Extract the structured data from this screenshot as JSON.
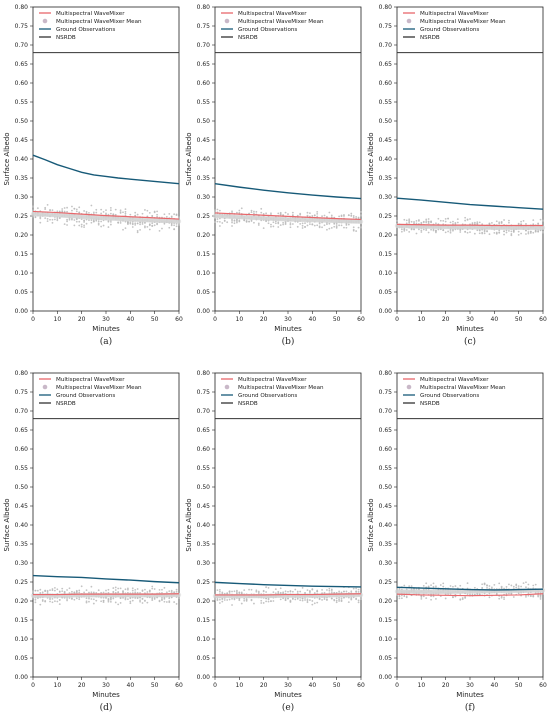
{
  "chart_data": [
    {
      "type": "line",
      "caption": "(a)",
      "xlabel": "Minutes",
      "ylabel": "Surface Albedo",
      "xlim": [
        0,
        60
      ],
      "ylim": [
        0,
        0.8
      ],
      "xticks": [
        0,
        10,
        20,
        30,
        40,
        50,
        60
      ],
      "yticks": [
        0.0,
        0.05,
        0.1,
        0.15,
        0.2,
        0.25,
        0.3,
        0.35,
        0.4,
        0.45,
        0.5,
        0.55,
        0.6,
        0.65,
        0.7,
        0.75,
        0.8
      ],
      "legend": [
        "Multispectral WaveMixer",
        "Multispectral WaveMixer Mean",
        "Ground Observations",
        "NSRDB"
      ],
      "legend_position": "top-right",
      "series": [
        {
          "name": "Multispectral WaveMixer",
          "color": "#e8676b",
          "x": [
            0,
            10,
            20,
            30,
            40,
            50,
            60
          ],
          "values": [
            0.262,
            0.259,
            0.255,
            0.251,
            0.248,
            0.245,
            0.242
          ]
        },
        {
          "name": "Multispectral WaveMixer Mean",
          "color": "#c9c9c9",
          "x": [
            0,
            10,
            20,
            30,
            40,
            50,
            60
          ],
          "values": [
            0.255,
            0.252,
            0.248,
            0.244,
            0.241,
            0.238,
            0.236
          ],
          "spread": 0.035
        },
        {
          "name": "Ground Observations",
          "color": "#175a78",
          "x": [
            0,
            5,
            10,
            15,
            20,
            25,
            30,
            35,
            40,
            45,
            50,
            55,
            60
          ],
          "values": [
            0.41,
            0.398,
            0.385,
            0.375,
            0.365,
            0.358,
            0.354,
            0.35,
            0.347,
            0.344,
            0.341,
            0.338,
            0.335
          ]
        },
        {
          "name": "NSRDB",
          "color": "#333333",
          "x": [
            0,
            60
          ],
          "values": [
            0.68,
            0.68
          ]
        }
      ]
    },
    {
      "type": "line",
      "caption": "(b)",
      "xlabel": "Minutes",
      "ylabel": "Surface Albedo",
      "xlim": [
        0,
        60
      ],
      "ylim": [
        0,
        0.8
      ],
      "xticks": [
        0,
        10,
        20,
        30,
        40,
        50,
        60
      ],
      "yticks": [
        0.0,
        0.05,
        0.1,
        0.15,
        0.2,
        0.25,
        0.3,
        0.35,
        0.4,
        0.45,
        0.5,
        0.55,
        0.6,
        0.65,
        0.7,
        0.75,
        0.8
      ],
      "legend": [
        "Multispectral WaveMixer",
        "Multispectral WaveMixer Mean",
        "Ground Observations",
        "NSRDB"
      ],
      "legend_position": "top-right",
      "series": [
        {
          "name": "Multispectral WaveMixer",
          "color": "#e8676b",
          "x": [
            0,
            10,
            20,
            30,
            40,
            50,
            60
          ],
          "values": [
            0.258,
            0.255,
            0.252,
            0.249,
            0.246,
            0.243,
            0.241
          ]
        },
        {
          "name": "Multispectral WaveMixer Mean",
          "color": "#c9c9c9",
          "x": [
            0,
            10,
            20,
            30,
            40,
            50,
            60
          ],
          "values": [
            0.25,
            0.247,
            0.244,
            0.241,
            0.239,
            0.237,
            0.235
          ],
          "spread": 0.03
        },
        {
          "name": "Ground Observations",
          "color": "#175a78",
          "x": [
            0,
            10,
            20,
            30,
            40,
            50,
            60
          ],
          "values": [
            0.335,
            0.326,
            0.318,
            0.311,
            0.305,
            0.3,
            0.296
          ]
        },
        {
          "name": "NSRDB",
          "color": "#333333",
          "x": [
            0,
            60
          ],
          "values": [
            0.68,
            0.68
          ]
        }
      ]
    },
    {
      "type": "line",
      "caption": "(c)",
      "xlabel": "Minutes",
      "ylabel": "Surface Albedo",
      "xlim": [
        0,
        60
      ],
      "ylim": [
        0,
        0.8
      ],
      "xticks": [
        0,
        10,
        20,
        30,
        40,
        50,
        60
      ],
      "yticks": [
        0.0,
        0.05,
        0.1,
        0.15,
        0.2,
        0.25,
        0.3,
        0.35,
        0.4,
        0.45,
        0.5,
        0.55,
        0.6,
        0.65,
        0.7,
        0.75,
        0.8
      ],
      "legend": [
        "Multispectral WaveMixer",
        "Multispectral WaveMixer Mean",
        "Ground Observations",
        "NSRDB"
      ],
      "legend_position": "top-right",
      "series": [
        {
          "name": "Multispectral WaveMixer",
          "color": "#e8676b",
          "x": [
            0,
            10,
            20,
            30,
            40,
            50,
            60
          ],
          "values": [
            0.228,
            0.227,
            0.226,
            0.226,
            0.225,
            0.225,
            0.225
          ]
        },
        {
          "name": "Multispectral WaveMixer Mean",
          "color": "#c9c9c9",
          "x": [
            0,
            10,
            20,
            30,
            40,
            50,
            60
          ],
          "values": [
            0.224,
            0.222,
            0.221,
            0.22,
            0.219,
            0.219,
            0.219
          ],
          "spread": 0.03
        },
        {
          "name": "Ground Observations",
          "color": "#175a78",
          "x": [
            0,
            10,
            20,
            30,
            40,
            50,
            60
          ],
          "values": [
            0.297,
            0.292,
            0.286,
            0.28,
            0.276,
            0.272,
            0.268
          ]
        },
        {
          "name": "NSRDB",
          "color": "#333333",
          "x": [
            0,
            60
          ],
          "values": [
            0.68,
            0.68
          ]
        }
      ]
    },
    {
      "type": "line",
      "caption": "(d)",
      "xlabel": "Minutes",
      "ylabel": "Surface Albedo",
      "xlim": [
        0,
        60
      ],
      "ylim": [
        0,
        0.8
      ],
      "xticks": [
        0,
        10,
        20,
        30,
        40,
        50,
        60
      ],
      "yticks": [
        0.0,
        0.05,
        0.1,
        0.15,
        0.2,
        0.25,
        0.3,
        0.35,
        0.4,
        0.45,
        0.5,
        0.55,
        0.6,
        0.65,
        0.7,
        0.75,
        0.8
      ],
      "legend": [
        "Multispectral WaveMixer",
        "Multispectral WaveMixer Mean",
        "Ground Observations",
        "NSRDB"
      ],
      "legend_position": "top-right",
      "series": [
        {
          "name": "Multispectral WaveMixer",
          "color": "#e8676b",
          "x": [
            0,
            10,
            20,
            30,
            40,
            50,
            60
          ],
          "values": [
            0.217,
            0.217,
            0.218,
            0.218,
            0.218,
            0.218,
            0.219
          ]
        },
        {
          "name": "Multispectral WaveMixer Mean",
          "color": "#c9c9c9",
          "x": [
            0,
            10,
            20,
            30,
            40,
            50,
            60
          ],
          "values": [
            0.214,
            0.214,
            0.215,
            0.215,
            0.215,
            0.215,
            0.216
          ],
          "spread": 0.028
        },
        {
          "name": "Ground Observations",
          "color": "#175a78",
          "x": [
            0,
            10,
            20,
            30,
            40,
            50,
            60
          ],
          "values": [
            0.267,
            0.264,
            0.262,
            0.258,
            0.255,
            0.251,
            0.248
          ]
        },
        {
          "name": "NSRDB",
          "color": "#333333",
          "x": [
            0,
            60
          ],
          "values": [
            0.68,
            0.68
          ]
        }
      ]
    },
    {
      "type": "line",
      "caption": "(e)",
      "xlabel": "Minutes",
      "ylabel": "Surface Albedo",
      "xlim": [
        0,
        60
      ],
      "ylim": [
        0,
        0.8
      ],
      "xticks": [
        0,
        10,
        20,
        30,
        40,
        50,
        60
      ],
      "yticks": [
        0.0,
        0.05,
        0.1,
        0.15,
        0.2,
        0.25,
        0.3,
        0.35,
        0.4,
        0.45,
        0.5,
        0.55,
        0.6,
        0.65,
        0.7,
        0.75,
        0.8
      ],
      "legend": [
        "Multispectral WaveMixer",
        "Multispectral WaveMixer Mean",
        "Ground Observations",
        "NSRDB"
      ],
      "legend_position": "top-right",
      "series": [
        {
          "name": "Multispectral WaveMixer",
          "color": "#e8676b",
          "x": [
            0,
            10,
            20,
            30,
            40,
            50,
            60
          ],
          "values": [
            0.216,
            0.216,
            0.216,
            0.217,
            0.217,
            0.218,
            0.219
          ]
        },
        {
          "name": "Multispectral WaveMixer Mean",
          "color": "#c9c9c9",
          "x": [
            0,
            10,
            20,
            30,
            40,
            50,
            60
          ],
          "values": [
            0.213,
            0.213,
            0.213,
            0.214,
            0.214,
            0.215,
            0.216
          ],
          "spread": 0.028
        },
        {
          "name": "Ground Observations",
          "color": "#175a78",
          "x": [
            0,
            10,
            20,
            30,
            40,
            50,
            60
          ],
          "values": [
            0.249,
            0.246,
            0.243,
            0.241,
            0.239,
            0.238,
            0.237
          ]
        },
        {
          "name": "NSRDB",
          "color": "#333333",
          "x": [
            0,
            60
          ],
          "values": [
            0.68,
            0.68
          ]
        }
      ]
    },
    {
      "type": "line",
      "caption": "(f)",
      "xlabel": "Minutes",
      "ylabel": "Surface Albedo",
      "xlim": [
        0,
        60
      ],
      "ylim": [
        0,
        0.8
      ],
      "xticks": [
        0,
        10,
        20,
        30,
        40,
        50,
        60
      ],
      "yticks": [
        0.0,
        0.05,
        0.1,
        0.15,
        0.2,
        0.25,
        0.3,
        0.35,
        0.4,
        0.45,
        0.5,
        0.55,
        0.6,
        0.65,
        0.7,
        0.75,
        0.8
      ],
      "legend": [
        "Multispectral WaveMixer",
        "Multispectral WaveMixer Mean",
        "Ground Observations",
        "NSRDB"
      ],
      "legend_position": "top-right",
      "series": [
        {
          "name": "Multispectral WaveMixer",
          "color": "#e8676b",
          "x": [
            0,
            10,
            20,
            30,
            40,
            50,
            60
          ],
          "values": [
            0.218,
            0.216,
            0.215,
            0.214,
            0.215,
            0.216,
            0.219
          ]
        },
        {
          "name": "Multispectral WaveMixer Mean",
          "color": "#c9c9c9",
          "x": [
            0,
            10,
            20,
            30,
            40,
            50,
            60
          ],
          "values": [
            0.225,
            0.224,
            0.224,
            0.225,
            0.226,
            0.227,
            0.228
          ],
          "spread": 0.028
        },
        {
          "name": "Ground Observations",
          "color": "#175a78",
          "x": [
            0,
            10,
            20,
            30,
            40,
            50,
            60
          ],
          "values": [
            0.236,
            0.234,
            0.232,
            0.23,
            0.229,
            0.23,
            0.231
          ]
        },
        {
          "name": "NSRDB",
          "color": "#333333",
          "x": [
            0,
            60
          ],
          "values": [
            0.68,
            0.68
          ]
        }
      ]
    }
  ]
}
